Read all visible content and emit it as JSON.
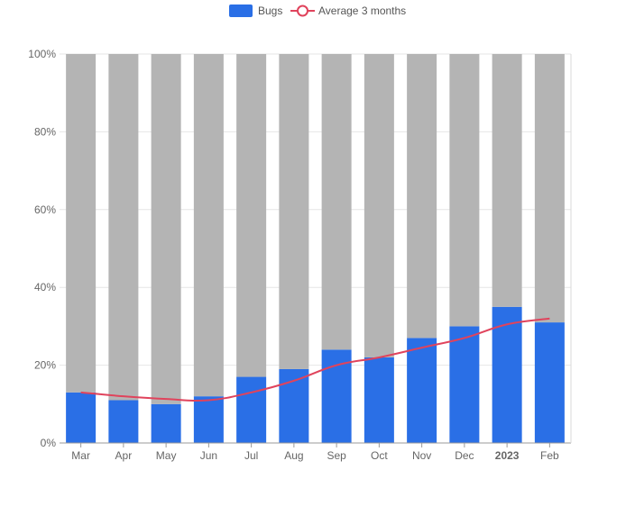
{
  "chart_data": {
    "type": "bar",
    "stacked_percent": true,
    "categories": [
      "Mar",
      "Apr",
      "May",
      "Jun",
      "Jul",
      "Aug",
      "Sep",
      "Oct",
      "Nov",
      "Dec",
      "2023",
      "Feb"
    ],
    "bold_categories": [
      "2023"
    ],
    "series": [
      {
        "name": "Bugs",
        "kind": "bar",
        "color": "#2a6fe6",
        "values": [
          13,
          11,
          10,
          12,
          17,
          19,
          24,
          22,
          27,
          30,
          35,
          31
        ]
      },
      {
        "kind": "bar",
        "color": "#b4b4b4",
        "values": [
          87,
          89,
          90,
          88,
          83,
          81,
          76,
          78,
          73,
          70,
          65,
          69
        ]
      },
      {
        "name": "Average 3 months",
        "kind": "line",
        "color": "#e0435c",
        "values": [
          13,
          12,
          11.3,
          11,
          13,
          16,
          20,
          22,
          24.5,
          27,
          30.5,
          32
        ]
      }
    ],
    "ylim": [
      0,
      100
    ],
    "yticks": [
      "0%",
      "20%",
      "40%",
      "60%",
      "80%",
      "100%"
    ],
    "ytick_values": [
      0,
      20,
      40,
      60,
      80,
      100
    ],
    "grid": true,
    "legend_position": "top-center",
    "title": "",
    "xlabel": "",
    "ylabel": ""
  }
}
